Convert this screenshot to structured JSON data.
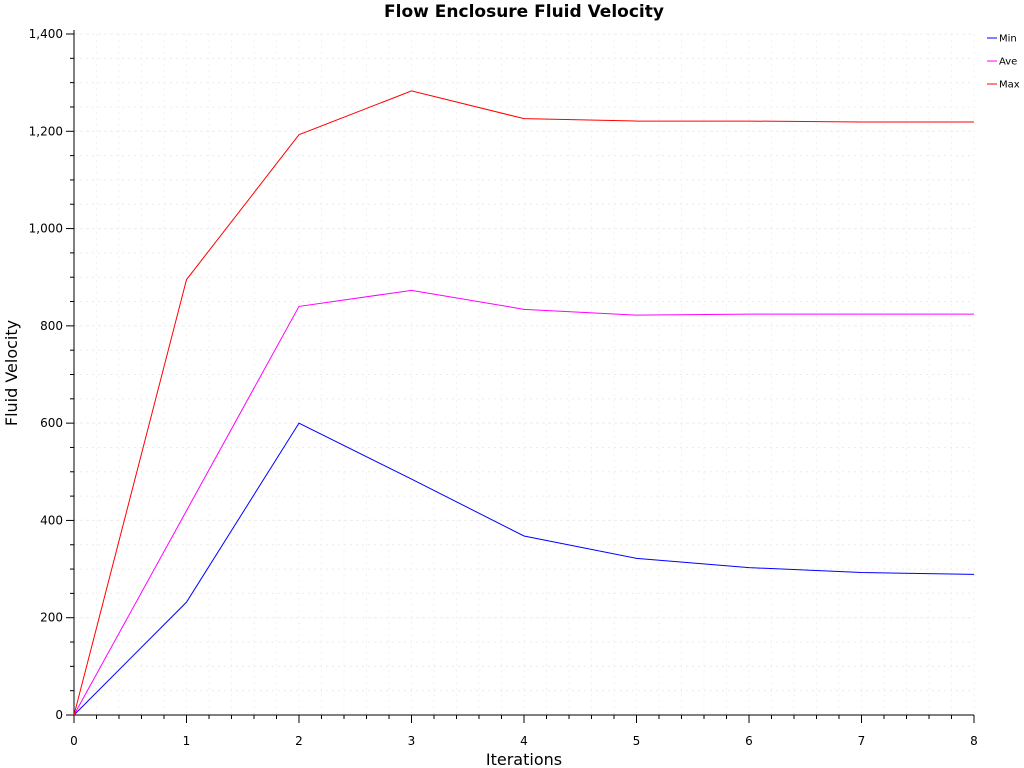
{
  "chart_data": {
    "type": "line",
    "title": "Flow Enclosure Fluid Velocity",
    "xlabel": "Iterations",
    "ylabel": "Fluid Velocity",
    "xlim": [
      0,
      8
    ],
    "ylim": [
      0,
      1400
    ],
    "x": [
      0,
      1,
      2,
      3,
      4,
      5,
      6,
      7,
      8
    ],
    "x_ticks": [
      0,
      1,
      2,
      3,
      4,
      5,
      6,
      7,
      8
    ],
    "y_ticks": [
      0,
      200,
      400,
      600,
      800,
      1000,
      1200,
      1400
    ],
    "y_tick_labels": [
      "0",
      "200",
      "400",
      "600",
      "800",
      "1,000",
      "1,200",
      "1,400"
    ],
    "grid": true,
    "legend_position": "top-right",
    "series": [
      {
        "name": "Min",
        "color": "#0000ff",
        "values": [
          0,
          232,
          600,
          485,
          368,
          322,
          303,
          293,
          289
        ]
      },
      {
        "name": "Ave",
        "color": "#ff00ff",
        "values": [
          0,
          420,
          840,
          873,
          834,
          822,
          824,
          824,
          824
        ]
      },
      {
        "name": "Max",
        "color": "#ff0000",
        "values": [
          0,
          895,
          1193,
          1283,
          1226,
          1221,
          1221,
          1219,
          1219
        ]
      }
    ]
  }
}
